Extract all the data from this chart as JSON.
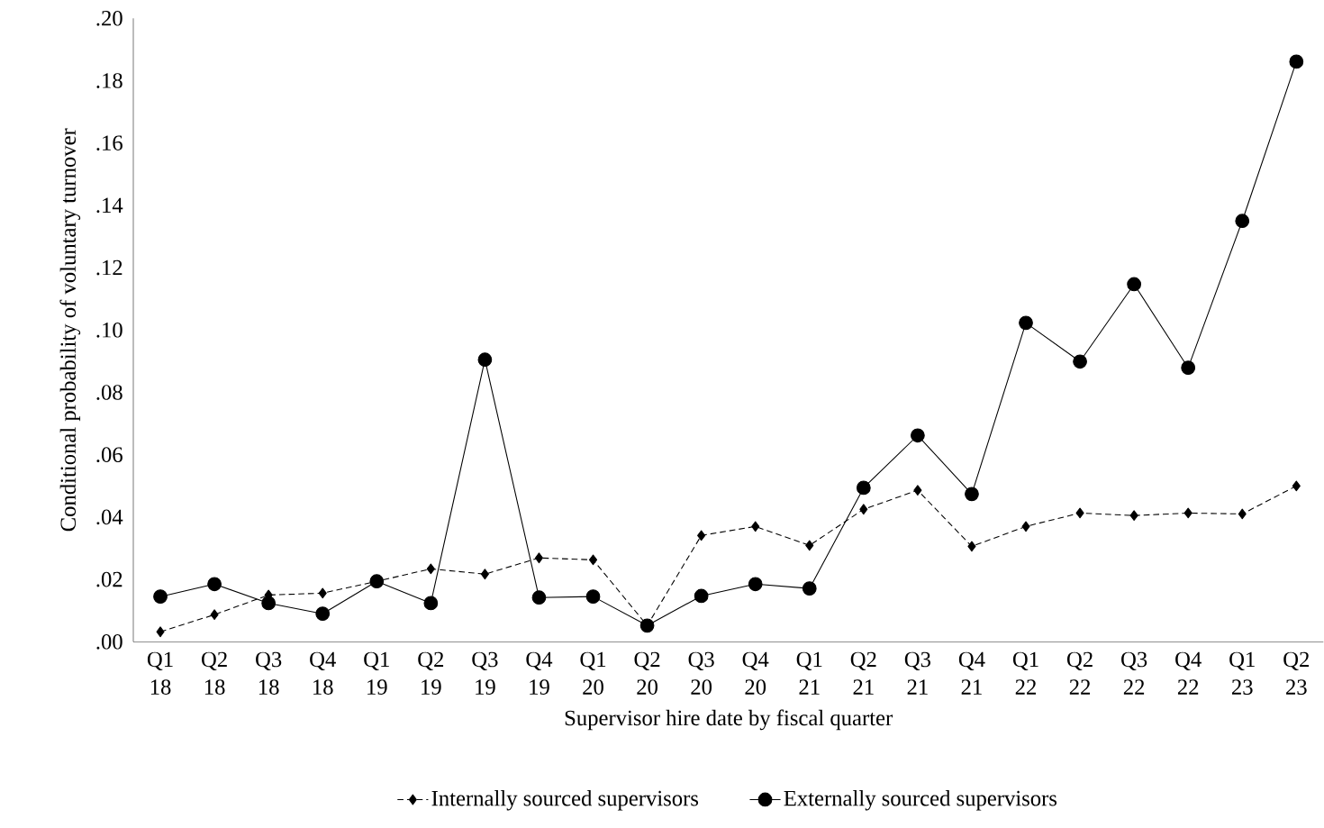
{
  "chart_data": {
    "type": "line",
    "xlabel": "Supervisor hire date by fiscal quarter",
    "ylabel": "Conditional probability of voluntary turnover",
    "categories": [
      "Q1 18",
      "Q2 18",
      "Q3 18",
      "Q4 18",
      "Q1 19",
      "Q2 19",
      "Q3 19",
      "Q4 19",
      "Q1 20",
      "Q2 20",
      "Q3 20",
      "Q4 20",
      "Q1 21",
      "Q2 21",
      "Q3 21",
      "Q4 21",
      "Q1 22",
      "Q2 22",
      "Q3 22",
      "Q4 22",
      "Q1 23",
      "Q2 23"
    ],
    "series": [
      {
        "name": "Internally sourced supervisors",
        "color": "#000000",
        "marker": "diamond",
        "line_style": "dashed",
        "values": [
          0.0032,
          0.0087,
          0.015,
          0.0156,
          0.0194,
          0.0234,
          0.0217,
          0.0269,
          0.0263,
          0.0052,
          0.0341,
          0.037,
          0.0309,
          0.0425,
          0.0486,
          0.0306,
          0.037,
          0.0413,
          0.0405,
          0.0413,
          0.041,
          0.05
        ]
      },
      {
        "name": "Externally sourced supervisors",
        "color": "#000000",
        "marker": "circle",
        "line_style": "solid",
        "values": [
          0.0145,
          0.0185,
          0.0124,
          0.009,
          0.0194,
          0.0124,
          0.0905,
          0.0142,
          0.0145,
          0.0052,
          0.0147,
          0.0185,
          0.0171,
          0.0494,
          0.0662,
          0.0474,
          0.1023,
          0.0899,
          0.1147,
          0.0879,
          0.135,
          0.1861
        ]
      }
    ],
    "ylim": [
      0,
      0.2
    ],
    "yticks": [
      {
        "value": 0,
        "label": ".00"
      },
      {
        "value": 0.02,
        "label": ".02"
      },
      {
        "value": 0.04,
        "label": ".04"
      },
      {
        "value": 0.06,
        "label": ".06"
      },
      {
        "value": 0.08,
        "label": ".08"
      },
      {
        "value": 0.1,
        "label": ".10"
      },
      {
        "value": 0.12,
        "label": ".12"
      },
      {
        "value": 0.14,
        "label": ".14"
      },
      {
        "value": 0.16,
        "label": ".16"
      },
      {
        "value": 0.18,
        "label": ".18"
      },
      {
        "value": 0.2,
        "label": ".20"
      }
    ],
    "grid": false,
    "legend": "bottom"
  }
}
